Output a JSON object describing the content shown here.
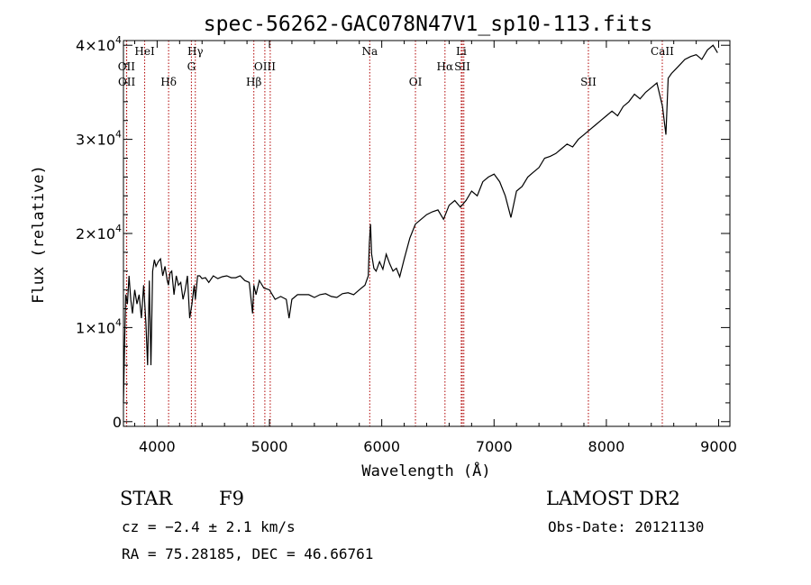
{
  "chart_data": {
    "type": "line",
    "title": "spec-56262-GAC078N47V1_sp10-113.fits",
    "xlabel": "Wavelength (Å)",
    "ylabel": "Flux (relative)",
    "xlim": [
      3700,
      9100
    ],
    "ylim": [
      -500,
      40500
    ],
    "x_ticks": [
      4000,
      5000,
      6000,
      7000,
      8000,
      9000
    ],
    "x_tick_labels": [
      "4000",
      "5000",
      "6000",
      "7000",
      "8000",
      "9000"
    ],
    "y_ticks": [
      {
        "value": 0,
        "base": "0",
        "exp": ""
      },
      {
        "value": 10000,
        "base": "1×10",
        "exp": "4"
      },
      {
        "value": 20000,
        "base": "2×10",
        "exp": "4"
      },
      {
        "value": 30000,
        "base": "3×10",
        "exp": "4"
      },
      {
        "value": 40000,
        "base": "4×10",
        "exp": "4"
      }
    ],
    "series": [
      {
        "x": [
          3700,
          3710,
          3720,
          3735,
          3750,
          3765,
          3780,
          3800,
          3820,
          3840,
          3860,
          3880,
          3900,
          3915,
          3930,
          3945,
          3960,
          3975,
          3990,
          4010,
          4030,
          4050,
          4070,
          4090,
          4100,
          4115,
          4130,
          4150,
          4170,
          4190,
          4210,
          4230,
          4250,
          4270,
          4290,
          4310,
          4330,
          4340,
          4360,
          4380,
          4400,
          4430,
          4460,
          4500,
          4540,
          4580,
          4620,
          4660,
          4700,
          4740,
          4780,
          4820,
          4850,
          4861,
          4880,
          4910,
          4950,
          5000,
          5050,
          5100,
          5150,
          5175,
          5200,
          5250,
          5300,
          5350,
          5400,
          5450,
          5500,
          5550,
          5600,
          5650,
          5700,
          5750,
          5800,
          5850,
          5880,
          5890,
          5900,
          5910,
          5930,
          5950,
          5980,
          6010,
          6040,
          6070,
          6100,
          6130,
          6160,
          6200,
          6250,
          6300,
          6350,
          6400,
          6450,
          6500,
          6550,
          6600,
          6650,
          6700,
          6750,
          6800,
          6850,
          6900,
          6950,
          7000,
          7050,
          7100,
          7150,
          7200,
          7250,
          7300,
          7350,
          7400,
          7450,
          7500,
          7550,
          7600,
          7650,
          7700,
          7750,
          7800,
          7850,
          7900,
          7950,
          8000,
          8050,
          8100,
          8150,
          8200,
          8250,
          8300,
          8350,
          8400,
          8450,
          8500,
          8530,
          8550,
          8580,
          8620,
          8660,
          8700,
          8750,
          8800,
          8850,
          8900,
          8950,
          8990
        ],
        "y": [
          2000,
          8000,
          13500,
          12500,
          15500,
          13000,
          11500,
          14000,
          12500,
          13500,
          11000,
          14500,
          10500,
          6000,
          15000,
          6000,
          16000,
          17200,
          16500,
          17000,
          17300,
          15500,
          16500,
          15000,
          14500,
          15800,
          16000,
          13500,
          15500,
          14500,
          14800,
          13000,
          14000,
          15500,
          11000,
          12500,
          14500,
          13000,
          15500,
          15500,
          15200,
          15300,
          14800,
          15500,
          15200,
          15400,
          15500,
          15300,
          15300,
          15500,
          15000,
          14800,
          11500,
          14500,
          13500,
          15000,
          14200,
          14000,
          13000,
          13300,
          13000,
          11000,
          13000,
          13500,
          13500,
          13500,
          13200,
          13500,
          13600,
          13300,
          13200,
          13600,
          13700,
          13500,
          14000,
          14500,
          15500,
          19000,
          21000,
          17800,
          16300,
          16000,
          17000,
          16200,
          17800,
          16800,
          16000,
          16300,
          15400,
          17300,
          19500,
          21000,
          21500,
          22000,
          22300,
          22500,
          21500,
          23000,
          23500,
          22800,
          23500,
          24500,
          24000,
          25500,
          26000,
          26300,
          25500,
          24000,
          21700,
          24500,
          25000,
          26000,
          26500,
          27000,
          28000,
          28200,
          28500,
          29000,
          29500,
          29200,
          30000,
          30500,
          31000,
          31500,
          32000,
          32500,
          33000,
          32500,
          33500,
          34000,
          34800,
          34300,
          35000,
          35500,
          36000,
          33500,
          30500,
          36500,
          37000,
          37500,
          38000,
          38500,
          38800,
          39000,
          38500,
          39500,
          40000,
          39200
        ]
      }
    ],
    "emission_lines": [
      {
        "name": "OII",
        "wavelength": 3727,
        "row": 1
      },
      {
        "name": "OII",
        "wavelength": 3729,
        "row": 2
      },
      {
        "name": "HeI",
        "wavelength": 3889,
        "row": 0
      },
      {
        "name": "Hδ",
        "wavelength": 4102,
        "row": 2
      },
      {
        "name": "Hγ",
        "wavelength": 4340,
        "row": 0
      },
      {
        "name": "G",
        "wavelength": 4305,
        "row": 1
      },
      {
        "name": "Hβ",
        "wavelength": 4861,
        "row": 2
      },
      {
        "name": "OIII",
        "wavelength": 4959,
        "row": 1
      },
      {
        "name": "OIII",
        "wavelength": 5007,
        "row": -1
      },
      {
        "name": "Na",
        "wavelength": 5893,
        "row": 0
      },
      {
        "name": "OI",
        "wavelength": 6300,
        "row": 2
      },
      {
        "name": "Hα",
        "wavelength": 6563,
        "row": 1
      },
      {
        "name": "Li",
        "wavelength": 6708,
        "row": 0
      },
      {
        "name": "SII",
        "wavelength": 6717,
        "row": 1
      },
      {
        "name": "SII",
        "wavelength": 6731,
        "row": -1
      },
      {
        "name": "SII",
        "wavelength": 7840,
        "row": 2
      },
      {
        "name": "CaII",
        "wavelength": 8498,
        "row": 0
      }
    ],
    "grid": false,
    "legend": "none"
  },
  "info": {
    "class": "STAR",
    "subclass": "F9",
    "survey": "LAMOST DR2",
    "cz": "cz = −2.4 ± 2.1 km/s",
    "obs_date": "Obs-Date: 20121130",
    "radec": "RA =  75.28185, DEC =  46.66761"
  },
  "colors": {
    "line": "#000000",
    "marker": "#b00000",
    "background": "#ffffff"
  }
}
